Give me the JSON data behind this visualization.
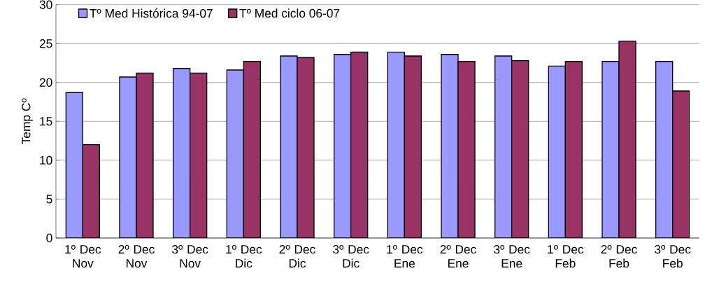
{
  "chart_data": {
    "type": "bar",
    "ylabel": "Temp Cº",
    "categories": [
      "1º Dec Nov",
      "2º Dec Nov",
      "3º Dec Nov",
      "1º Dec Dic",
      "2º Dec Dic",
      "3º Dec Dic",
      "1º Dec Ene",
      "2º Dec Ene",
      "3º Dec Ene",
      "1º Dec Feb",
      "2º Dec Feb",
      "3º Dec Feb"
    ],
    "series": [
      {
        "name": "Tº Med Histórica 94-07",
        "color": "#9999ff",
        "values": [
          18.7,
          20.7,
          21.8,
          21.6,
          23.4,
          23.6,
          23.9,
          23.6,
          23.4,
          22.1,
          22.7,
          22.7
        ]
      },
      {
        "name": "Tº Med ciclo 06-07",
        "color": "#993366",
        "values": [
          12.0,
          21.2,
          21.2,
          22.7,
          23.2,
          23.9,
          23.4,
          22.7,
          22.8,
          22.7,
          25.3,
          18.9
        ]
      }
    ],
    "ylim": [
      0,
      30
    ],
    "yticks": [
      0,
      5,
      10,
      15,
      20,
      25,
      30
    ],
    "grid": "y",
    "legend": "top left"
  }
}
